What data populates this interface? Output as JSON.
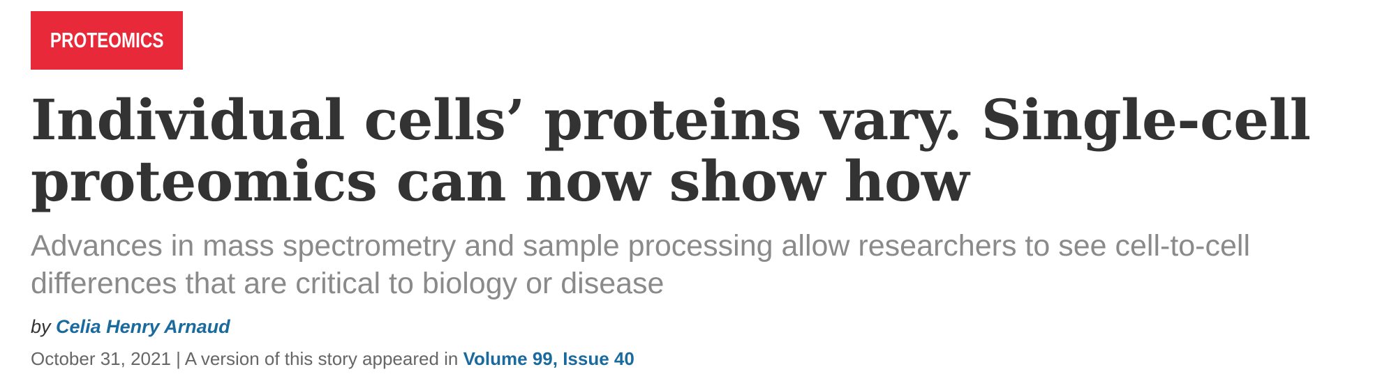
{
  "category": {
    "label": "PROTEOMICS",
    "color": "#e8293a"
  },
  "article": {
    "headline": "Individual cells’ proteins vary. Single-cell proteomics can now show how",
    "subheadline": "Advances in mass spectrometry and sample processing allow researchers to see cell-to-cell differences that are critical to biology or disease",
    "byline_prefix": "by",
    "author": "Celia Henry Arnaud",
    "date": "October 31, 2021",
    "separator": "|",
    "version_note": "A version of this story appeared in",
    "issue_link": "Volume 99, Issue 40"
  },
  "colors": {
    "link": "#1b6a9e",
    "headline": "#333333",
    "subheadline": "#8a8a8a"
  }
}
